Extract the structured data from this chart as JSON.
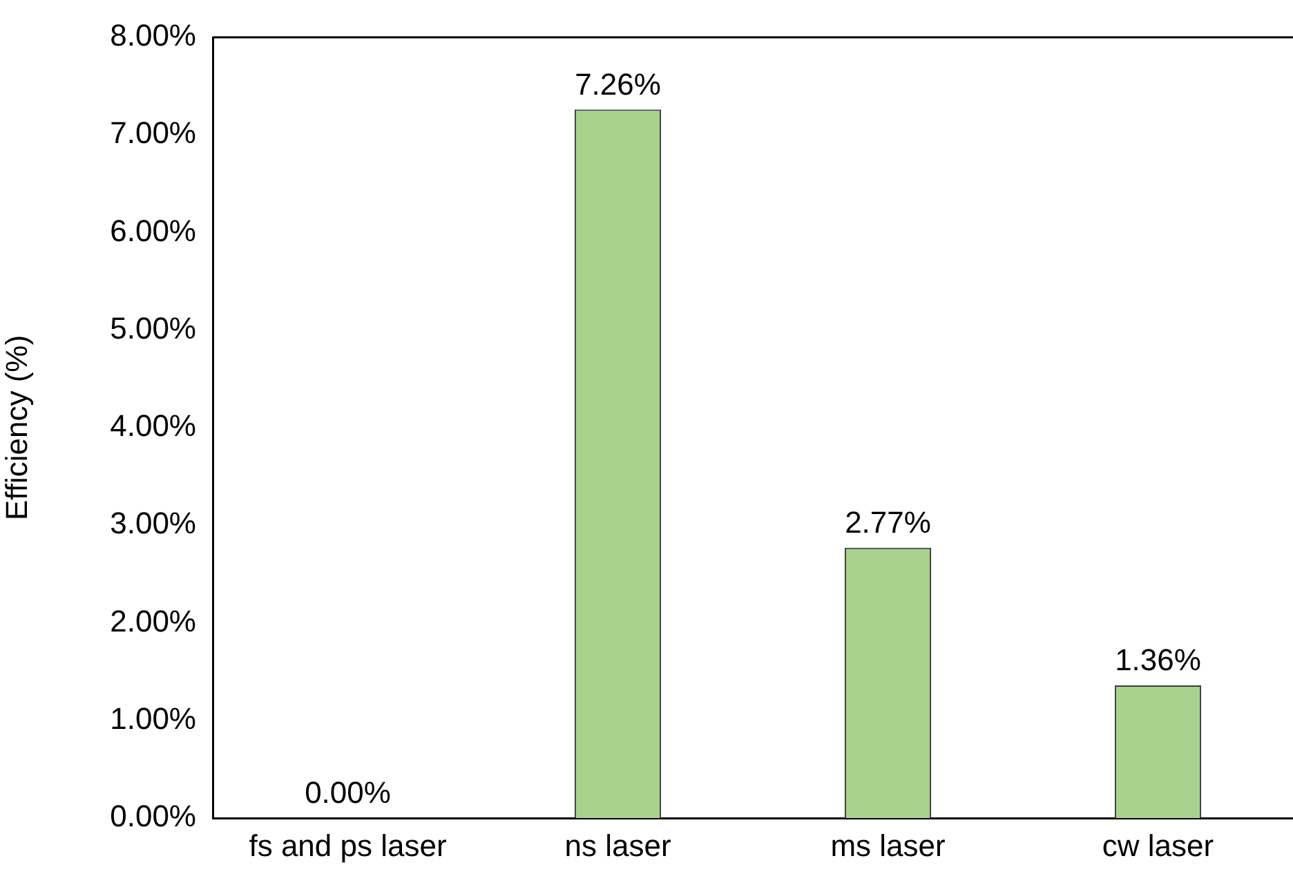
{
  "chart_data": {
    "type": "bar",
    "ylabel": "Efficiency (%)",
    "categories": [
      "fs and ps laser",
      "ns laser",
      "ms laser",
      "cw laser"
    ],
    "values": [
      0,
      7.26,
      2.77,
      1.36
    ],
    "value_labels": [
      "0.00%",
      "7.26%",
      "2.77%",
      "1.36%"
    ],
    "color": "#a9d18e",
    "ylim": [
      0,
      8
    ],
    "yticks": [
      {
        "value": 0,
        "label": "0.00%"
      },
      {
        "value": 1,
        "label": "1.00%"
      },
      {
        "value": 2,
        "label": "2.00%"
      },
      {
        "value": 3,
        "label": "3.00%"
      },
      {
        "value": 4,
        "label": "4.00%"
      },
      {
        "value": 5,
        "label": "5.00%"
      },
      {
        "value": 6,
        "label": "6.00%"
      },
      {
        "value": 7,
        "label": "7.00%"
      },
      {
        "value": 8,
        "label": "8.00%"
      }
    ]
  }
}
